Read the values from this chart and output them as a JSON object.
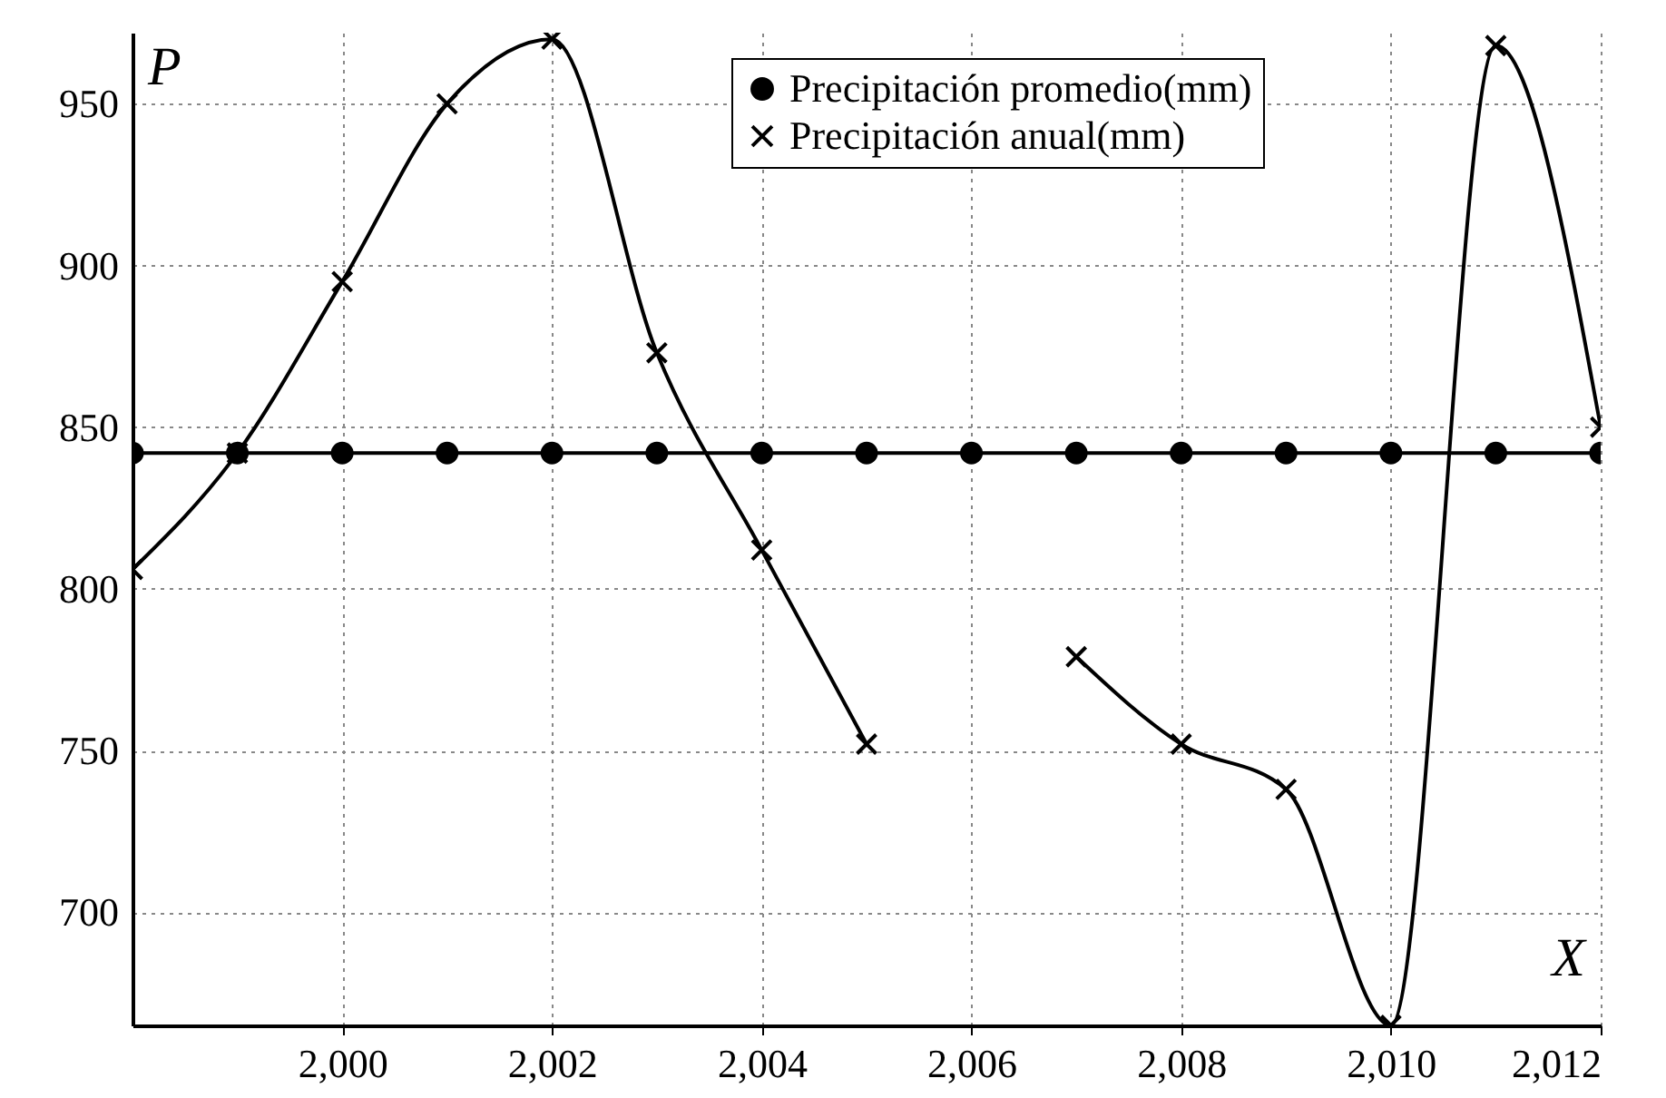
{
  "chart_data": {
    "type": "line",
    "xlabel": "X",
    "ylabel": "P",
    "x": [
      1998,
      1999,
      2000,
      2001,
      2002,
      2003,
      2004,
      2005,
      2006,
      2007,
      2008,
      2009,
      2010,
      2011,
      2012
    ],
    "series": [
      {
        "name": "Precipitación promedio(mm)",
        "color": "#000000",
        "marker": "circle",
        "values": [
          842,
          842,
          842,
          842,
          842,
          842,
          842,
          842,
          842,
          842,
          842,
          842,
          842,
          842,
          842
        ]
      },
      {
        "name": "Precipitación anual(mm)",
        "color": "#000000",
        "marker": "cross",
        "values": [
          806,
          842,
          895,
          950,
          970,
          873,
          812,
          752,
          null,
          779,
          752,
          738,
          665,
          968,
          850
        ]
      }
    ],
    "xlim": [
      1998,
      2012
    ],
    "xticks": [
      {
        "value": 2000,
        "label": "2,000"
      },
      {
        "value": 2002,
        "label": "2,002"
      },
      {
        "value": 2004,
        "label": "2,004"
      },
      {
        "value": 2006,
        "label": "2,006"
      },
      {
        "value": 2008,
        "label": "2,008"
      },
      {
        "value": 2010,
        "label": "2,010"
      },
      {
        "value": 2012,
        "label": "2,012"
      }
    ],
    "ylim": [
      665,
      972
    ],
    "yticks": [
      700,
      750,
      800,
      850,
      900,
      950
    ],
    "grid": true,
    "legend": "top right",
    "line_style": "solid"
  }
}
